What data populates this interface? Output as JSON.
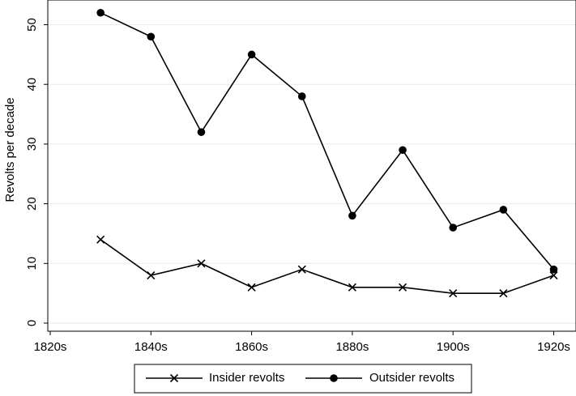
{
  "chart_data": {
    "type": "line",
    "title": "",
    "xlabel": "",
    "ylabel": "Revolts per decade",
    "x_tick_labels": [
      "1820s",
      "1840s",
      "1860s",
      "1880s",
      "1900s",
      "1920s"
    ],
    "x_tick_values": [
      1820,
      1840,
      1860,
      1880,
      1900,
      1920
    ],
    "y_tick_labels": [
      "0",
      "10",
      "20",
      "30",
      "40",
      "50"
    ],
    "y_tick_values": [
      0,
      10,
      20,
      30,
      40,
      50
    ],
    "xlim": [
      1820,
      1920
    ],
    "ylim": [
      0,
      53
    ],
    "grid": "horizontal",
    "legend_position": "bottom",
    "x": [
      1830,
      1840,
      1850,
      1860,
      1870,
      1880,
      1890,
      1900,
      1910,
      1920
    ],
    "series": [
      {
        "name": "Insider revolts",
        "marker": "x",
        "values": [
          14,
          8,
          10,
          6,
          9,
          6,
          6,
          5,
          5,
          8
        ]
      },
      {
        "name": "Outsider revolts",
        "marker": "circle",
        "values": [
          52,
          48,
          32,
          45,
          38,
          18,
          29,
          16,
          19,
          9
        ]
      }
    ]
  }
}
